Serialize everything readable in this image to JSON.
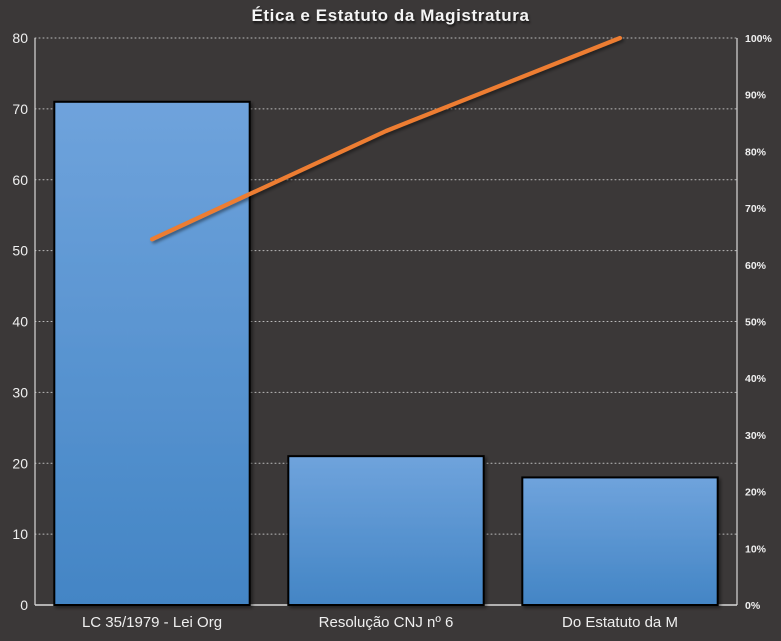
{
  "chart_data": {
    "type": "pareto (bar + cumulative line)",
    "title": "Ética e Estatuto da Magistratura",
    "categories": [
      "LC 35/1979 - Lei Org",
      "Resolução CNJ nº 6",
      "Do Estatuto da M"
    ],
    "series": [
      {
        "name": "occurrences",
        "type": "bar",
        "axis": "left",
        "values": [
          71,
          21,
          18
        ]
      },
      {
        "name": "cumulative-percent",
        "type": "line",
        "axis": "right",
        "values": [
          64.5,
          83.6,
          100
        ]
      }
    ],
    "left_axis": {
      "min": 0,
      "max": 80,
      "tick_labels": [
        "0",
        "10",
        "20",
        "30",
        "40",
        "50",
        "60",
        "70",
        "80"
      ]
    },
    "right_axis": {
      "min": 0,
      "max": 100,
      "tick_labels": [
        "0%",
        "10%",
        "20%",
        "30%",
        "40%",
        "50%",
        "60%",
        "70%",
        "80%",
        "90%",
        "100%"
      ]
    },
    "grid": "dotted horizontal gridlines at left-axis ticks",
    "legend": "none",
    "colors": {
      "background": "#3B3838",
      "bar_fill_top": "#6FA3DC",
      "bar_fill_bottom": "#4385C5",
      "bar_border": "#000000",
      "line_color": "#ED7D31",
      "axis_color": "#D9D9D9",
      "grid_color": "#DCDCDC",
      "text_color": "#EFEFEF"
    }
  }
}
